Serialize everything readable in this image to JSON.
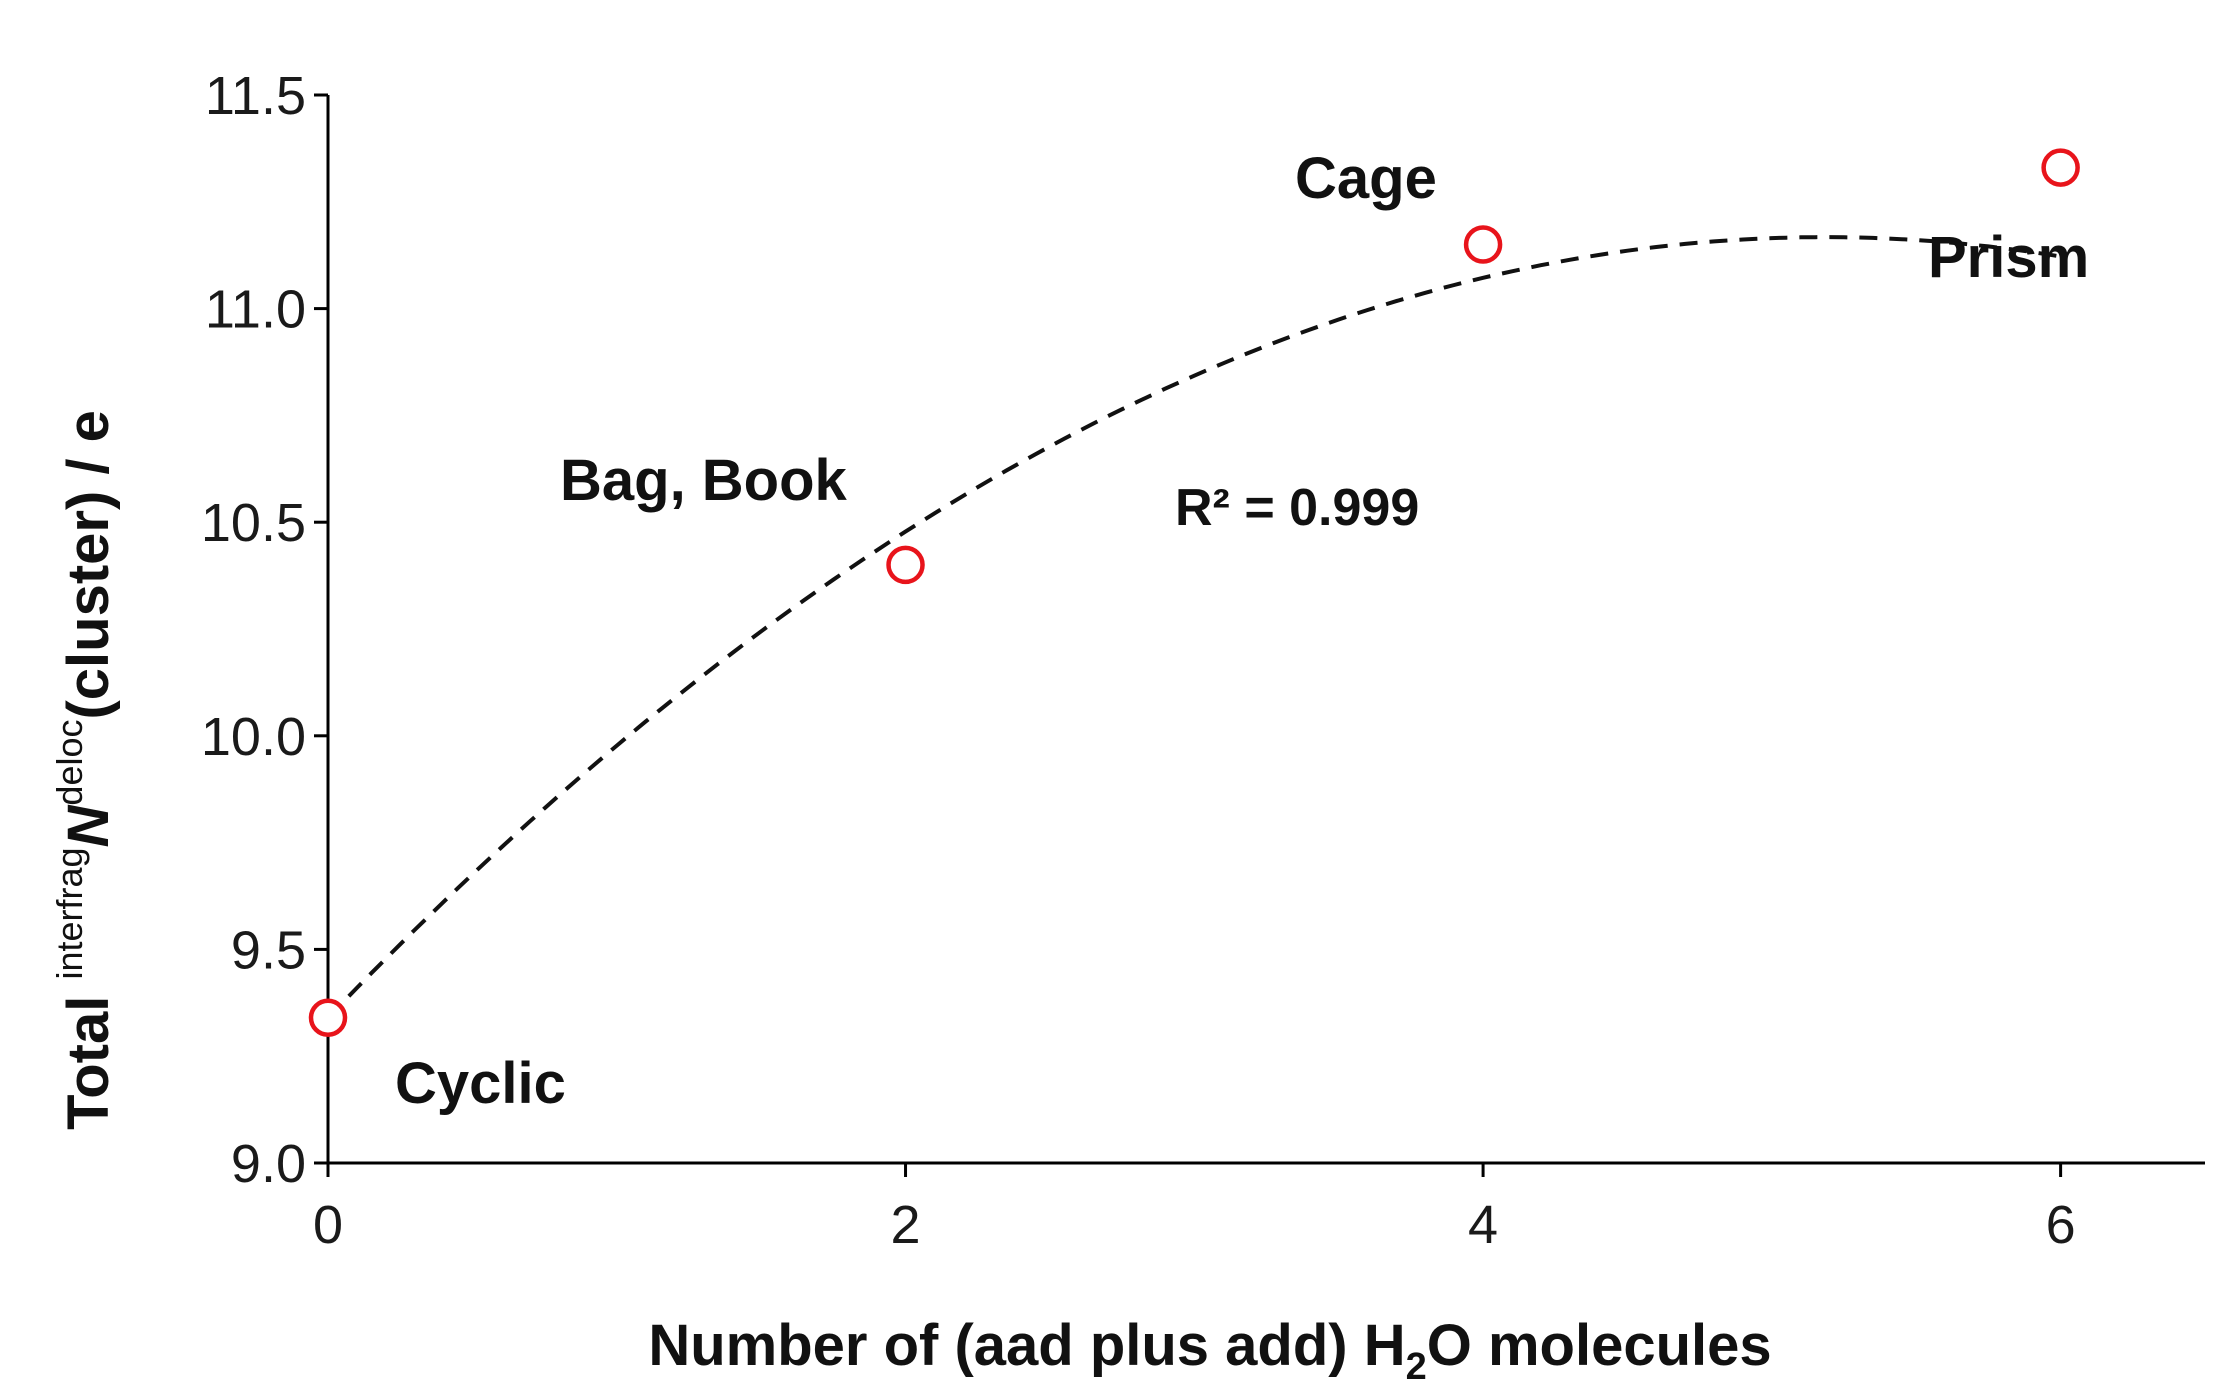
{
  "chart_data": {
    "type": "scatter",
    "x": [
      0,
      2,
      4,
      6
    ],
    "y": [
      9.34,
      10.4,
      11.15,
      11.33
    ],
    "point_labels": [
      "Cyclic",
      "Bag, Book",
      "Cage",
      "Prism"
    ],
    "xlim": [
      0,
      6.5
    ],
    "ylim": [
      9.0,
      11.5
    ],
    "x_ticks": [
      0,
      2,
      4,
      6
    ],
    "x_tick_labels": [
      "0",
      "2",
      "4",
      "6"
    ],
    "y_ticks": [
      9.0,
      9.5,
      10.0,
      10.5,
      11.0,
      11.5
    ],
    "y_tick_labels": [
      "9.0",
      "9.5",
      "10.0",
      "10.5",
      "11.0",
      "11.5"
    ],
    "xlabel": {
      "pre": "Number of (aad plus add) H",
      "sub": "2",
      "post": "O molecules"
    },
    "ylabel": {
      "pre": "Total ",
      "sup1": "interfrag",
      "italic": "N",
      "sup2": "deloc",
      "post": "(cluster) / e"
    },
    "trendline": {
      "type": "polynomial",
      "order": 2,
      "coefficients": [
        -0.068,
        0.705,
        9.34
      ],
      "r_squared_label": "R² = 0.999"
    },
    "grid": false,
    "legend": "none",
    "marker_color": "#e8141b",
    "trend_color": "#111111"
  }
}
